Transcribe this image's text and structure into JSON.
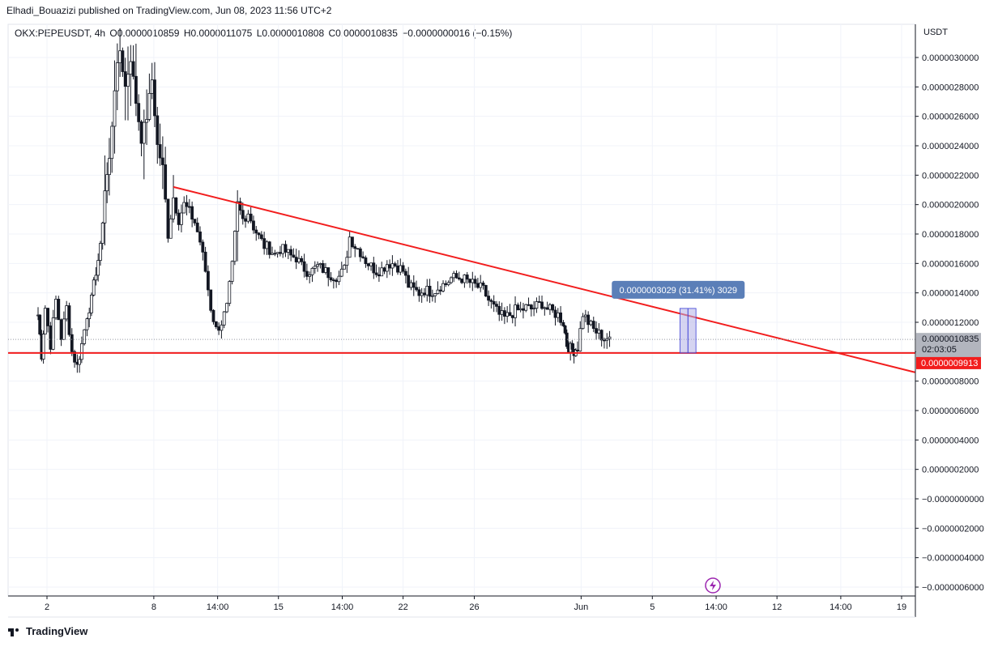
{
  "header": {
    "publisher": "Elhadi_Bouazizi published on TradingView.com, Jun 08, 2023 11:56 UTC+2"
  },
  "legend": {
    "symbol": "OKX:PEPEUSDT, 4h",
    "open": "O0.0000010859",
    "high": "H0.0000011075",
    "low": "L0.0000010808",
    "close": "C0.0000010835",
    "change": "−0.0000000016 (−0.15%)"
  },
  "footer": {
    "brand": "TradingView"
  },
  "colors": {
    "accent_red": "#f21d1d",
    "measure_fill": "#b3b1e6",
    "measure_label": "#5b7fb8",
    "grid": "#f0f3fa",
    "candle": "#131722"
  },
  "chart_data": {
    "type": "candlestick",
    "currency": "USDT",
    "y_ticks": [
      "0.0000030000",
      "0.0000028000",
      "0.0000026000",
      "0.0000024000",
      "0.0000022000",
      "0.0000020000",
      "0.0000018000",
      "0.0000016000",
      "0.0000014000",
      "0.0000012000",
      "0.0000010000",
      "0.0000008000",
      "0.0000006000",
      "0.0000004000",
      "0.0000002000",
      "−0.0000000000",
      "−0.0000002000",
      "−0.0000004000",
      "−0.0000006000"
    ],
    "y_tick_values": [
      3.0,
      2.8,
      2.6,
      2.4,
      2.2,
      2.0,
      1.8,
      1.6,
      1.4,
      1.2,
      1.0,
      0.8,
      0.6,
      0.4,
      0.2,
      0.0,
      -0.2,
      -0.4,
      -0.6
    ],
    "ylim": [
      -0.65,
      3.2
    ],
    "x_ticks": [
      {
        "label": "2",
        "d": 2.0
      },
      {
        "label": "8",
        "d": 8.0
      },
      {
        "label": "14:00",
        "d": 11.5833
      },
      {
        "label": "15",
        "d": 15.0
      },
      {
        "label": "14:00",
        "d": 18.5833
      },
      {
        "label": "22",
        "d": 22.0
      },
      {
        "label": "26",
        "d": 26.0
      },
      {
        "label": "Jun",
        "d": 32.0
      },
      {
        "label": "5",
        "d": 36.0
      },
      {
        "label": "14:00",
        "d": 39.5833
      },
      {
        "label": "12",
        "d": 43.0
      },
      {
        "label": "14:00",
        "d": 46.5833
      },
      {
        "label": "19",
        "d": 50.0
      }
    ],
    "xlim": [
      -0.2,
      50.75
    ],
    "support_level": {
      "label": "0.0000009913",
      "value": 0.9913
    },
    "last_price": {
      "label": "0.0000010835",
      "value": 1.0835,
      "countdown": "02:03:05"
    },
    "trendline": [
      {
        "d": 9.1,
        "v": 2.12
      },
      {
        "d": 50.75,
        "v": 0.86
      }
    ],
    "measure": {
      "label": "0.0000003029 (31.41%) 3029",
      "d_from": 37.55,
      "d_to": 38.45,
      "low": 0.9913,
      "high": 1.2942
    },
    "value_scale_note": "values in units of 1e-6 USDT",
    "path_keypoints": [
      [
        1.5,
        1.25
      ],
      [
        1.7,
        0.98
      ],
      [
        1.9,
        1.3
      ],
      [
        2.2,
        1.05
      ],
      [
        2.5,
        1.35
      ],
      [
        2.8,
        1.1
      ],
      [
        3.1,
        1.3
      ],
      [
        3.4,
        1.0
      ],
      [
        3.7,
        0.9
      ],
      [
        3.95,
        1.05
      ],
      [
        4.25,
        1.25
      ],
      [
        4.5,
        1.35
      ],
      [
        4.75,
        1.55
      ],
      [
        5.0,
        1.7
      ],
      [
        5.25,
        2.1
      ],
      [
        5.5,
        2.3
      ],
      [
        5.8,
        2.8
      ],
      [
        6.1,
        3.05
      ],
      [
        6.4,
        2.8
      ],
      [
        6.7,
        3.0
      ],
      [
        7.0,
        2.7
      ],
      [
        7.3,
        2.45
      ],
      [
        7.6,
        2.6
      ],
      [
        7.9,
        2.85
      ],
      [
        8.2,
        2.4
      ],
      [
        8.5,
        2.25
      ],
      [
        8.8,
        1.8
      ],
      [
        9.1,
        2.05
      ],
      [
        9.4,
        1.9
      ],
      [
        9.7,
        2.0
      ],
      [
        10.0,
        1.95
      ],
      [
        10.3,
        1.88
      ],
      [
        10.6,
        1.75
      ],
      [
        10.9,
        1.55
      ],
      [
        11.2,
        1.3
      ],
      [
        11.5,
        1.15
      ],
      [
        11.8,
        1.2
      ],
      [
        12.1,
        1.3
      ],
      [
        12.4,
        1.58
      ],
      [
        12.7,
        2.0
      ],
      [
        13.0,
        1.9
      ],
      [
        13.3,
        1.95
      ],
      [
        13.6,
        1.85
      ],
      [
        13.9,
        1.78
      ],
      [
        14.2,
        1.72
      ],
      [
        14.5,
        1.7
      ],
      [
        14.8,
        1.66
      ],
      [
        15.1,
        1.7
      ],
      [
        15.4,
        1.68
      ],
      [
        15.7,
        1.65
      ],
      [
        16.0,
        1.64
      ],
      [
        16.3,
        1.58
      ],
      [
        16.6,
        1.55
      ],
      [
        16.9,
        1.55
      ],
      [
        17.2,
        1.58
      ],
      [
        17.5,
        1.56
      ],
      [
        17.8,
        1.53
      ],
      [
        18.1,
        1.52
      ],
      [
        18.4,
        1.51
      ],
      [
        18.7,
        1.56
      ],
      [
        19.0,
        1.78
      ],
      [
        19.3,
        1.72
      ],
      [
        19.6,
        1.68
      ],
      [
        19.9,
        1.62
      ],
      [
        20.2,
        1.58
      ],
      [
        20.5,
        1.55
      ],
      [
        20.8,
        1.56
      ],
      [
        21.1,
        1.6
      ],
      [
        21.4,
        1.6
      ],
      [
        21.7,
        1.58
      ],
      [
        22.0,
        1.55
      ],
      [
        22.3,
        1.45
      ],
      [
        22.6,
        1.42
      ],
      [
        22.9,
        1.4
      ],
      [
        23.2,
        1.42
      ],
      [
        23.5,
        1.41
      ],
      [
        23.8,
        1.42
      ],
      [
        24.1,
        1.45
      ],
      [
        24.4,
        1.46
      ],
      [
        24.7,
        1.5
      ],
      [
        25.0,
        1.5
      ],
      [
        25.3,
        1.5
      ],
      [
        25.6,
        1.48
      ],
      [
        25.9,
        1.46
      ],
      [
        26.2,
        1.44
      ],
      [
        26.5,
        1.42
      ],
      [
        26.8,
        1.35
      ],
      [
        27.1,
        1.3
      ],
      [
        27.4,
        1.25
      ],
      [
        27.7,
        1.23
      ],
      [
        28.0,
        1.25
      ],
      [
        28.3,
        1.28
      ],
      [
        28.6,
        1.28
      ],
      [
        28.9,
        1.3
      ],
      [
        29.2,
        1.29
      ],
      [
        29.5,
        1.31
      ],
      [
        29.8,
        1.33
      ],
      [
        30.1,
        1.29
      ],
      [
        30.4,
        1.27
      ],
      [
        30.7,
        1.25
      ],
      [
        31.0,
        1.2
      ],
      [
        31.2,
        1.05
      ],
      [
        31.4,
        1.02
      ],
      [
        31.6,
        1.01
      ],
      [
        31.8,
        1.03
      ],
      [
        32.1,
        1.26
      ],
      [
        32.4,
        1.2
      ],
      [
        32.7,
        1.15
      ],
      [
        33.0,
        1.12
      ],
      [
        33.3,
        1.09
      ],
      [
        33.6,
        1.1
      ]
    ]
  }
}
